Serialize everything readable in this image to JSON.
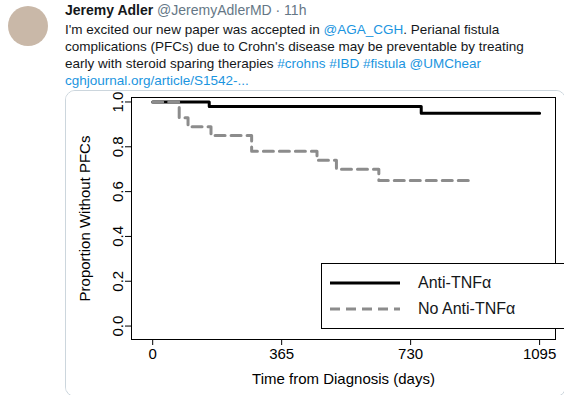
{
  "tweet": {
    "name": "Jeremy Adler",
    "handle": "@JeremyAdlerMD",
    "time": "· 11h",
    "text_lines": [
      "I'm excited our new paper was accepted in @AGA_CGH. Perianal fistula",
      "complications (PFCs) due to Crohn's disease may be preventable by treating",
      "early with steroid sparing therapies #crohns #IBD #fistula @UMChear",
      "cghjournal.org/article/S1542-..."
    ]
  },
  "chart_data": {
    "type": "line",
    "x_label": "Time from Diagnosis (days)",
    "y_label": "Proportion Without PFCs",
    "xlim": [
      -60,
      1140
    ],
    "xticks": [
      0,
      365,
      730,
      1095
    ],
    "ylim": [
      -0.06,
      1.02
    ],
    "yticks": [
      {
        "value": 0,
        "label": "0.0"
      },
      0.2,
      0.4,
      0.6,
      0.8,
      {
        "value": 1,
        "label": "1.0"
      }
    ],
    "legend": "lower right",
    "grid": false,
    "series": [
      {
        "name": "Anti-TNFα",
        "color": "#000000",
        "line_style": "solid",
        "x": [
          0,
          160,
          760,
          1095
        ],
        "values": [
          1.0,
          0.98,
          0.95,
          0.95
        ]
      },
      {
        "name": "No Anti-TNFα",
        "color": "#8c8c8c",
        "line_style": "dashed",
        "x": [
          0,
          75,
          100,
          165,
          280,
          465,
          520,
          640,
          900
        ],
        "values": [
          1.0,
          0.93,
          0.89,
          0.85,
          0.78,
          0.74,
          0.7,
          0.65,
          0.65
        ]
      }
    ]
  }
}
